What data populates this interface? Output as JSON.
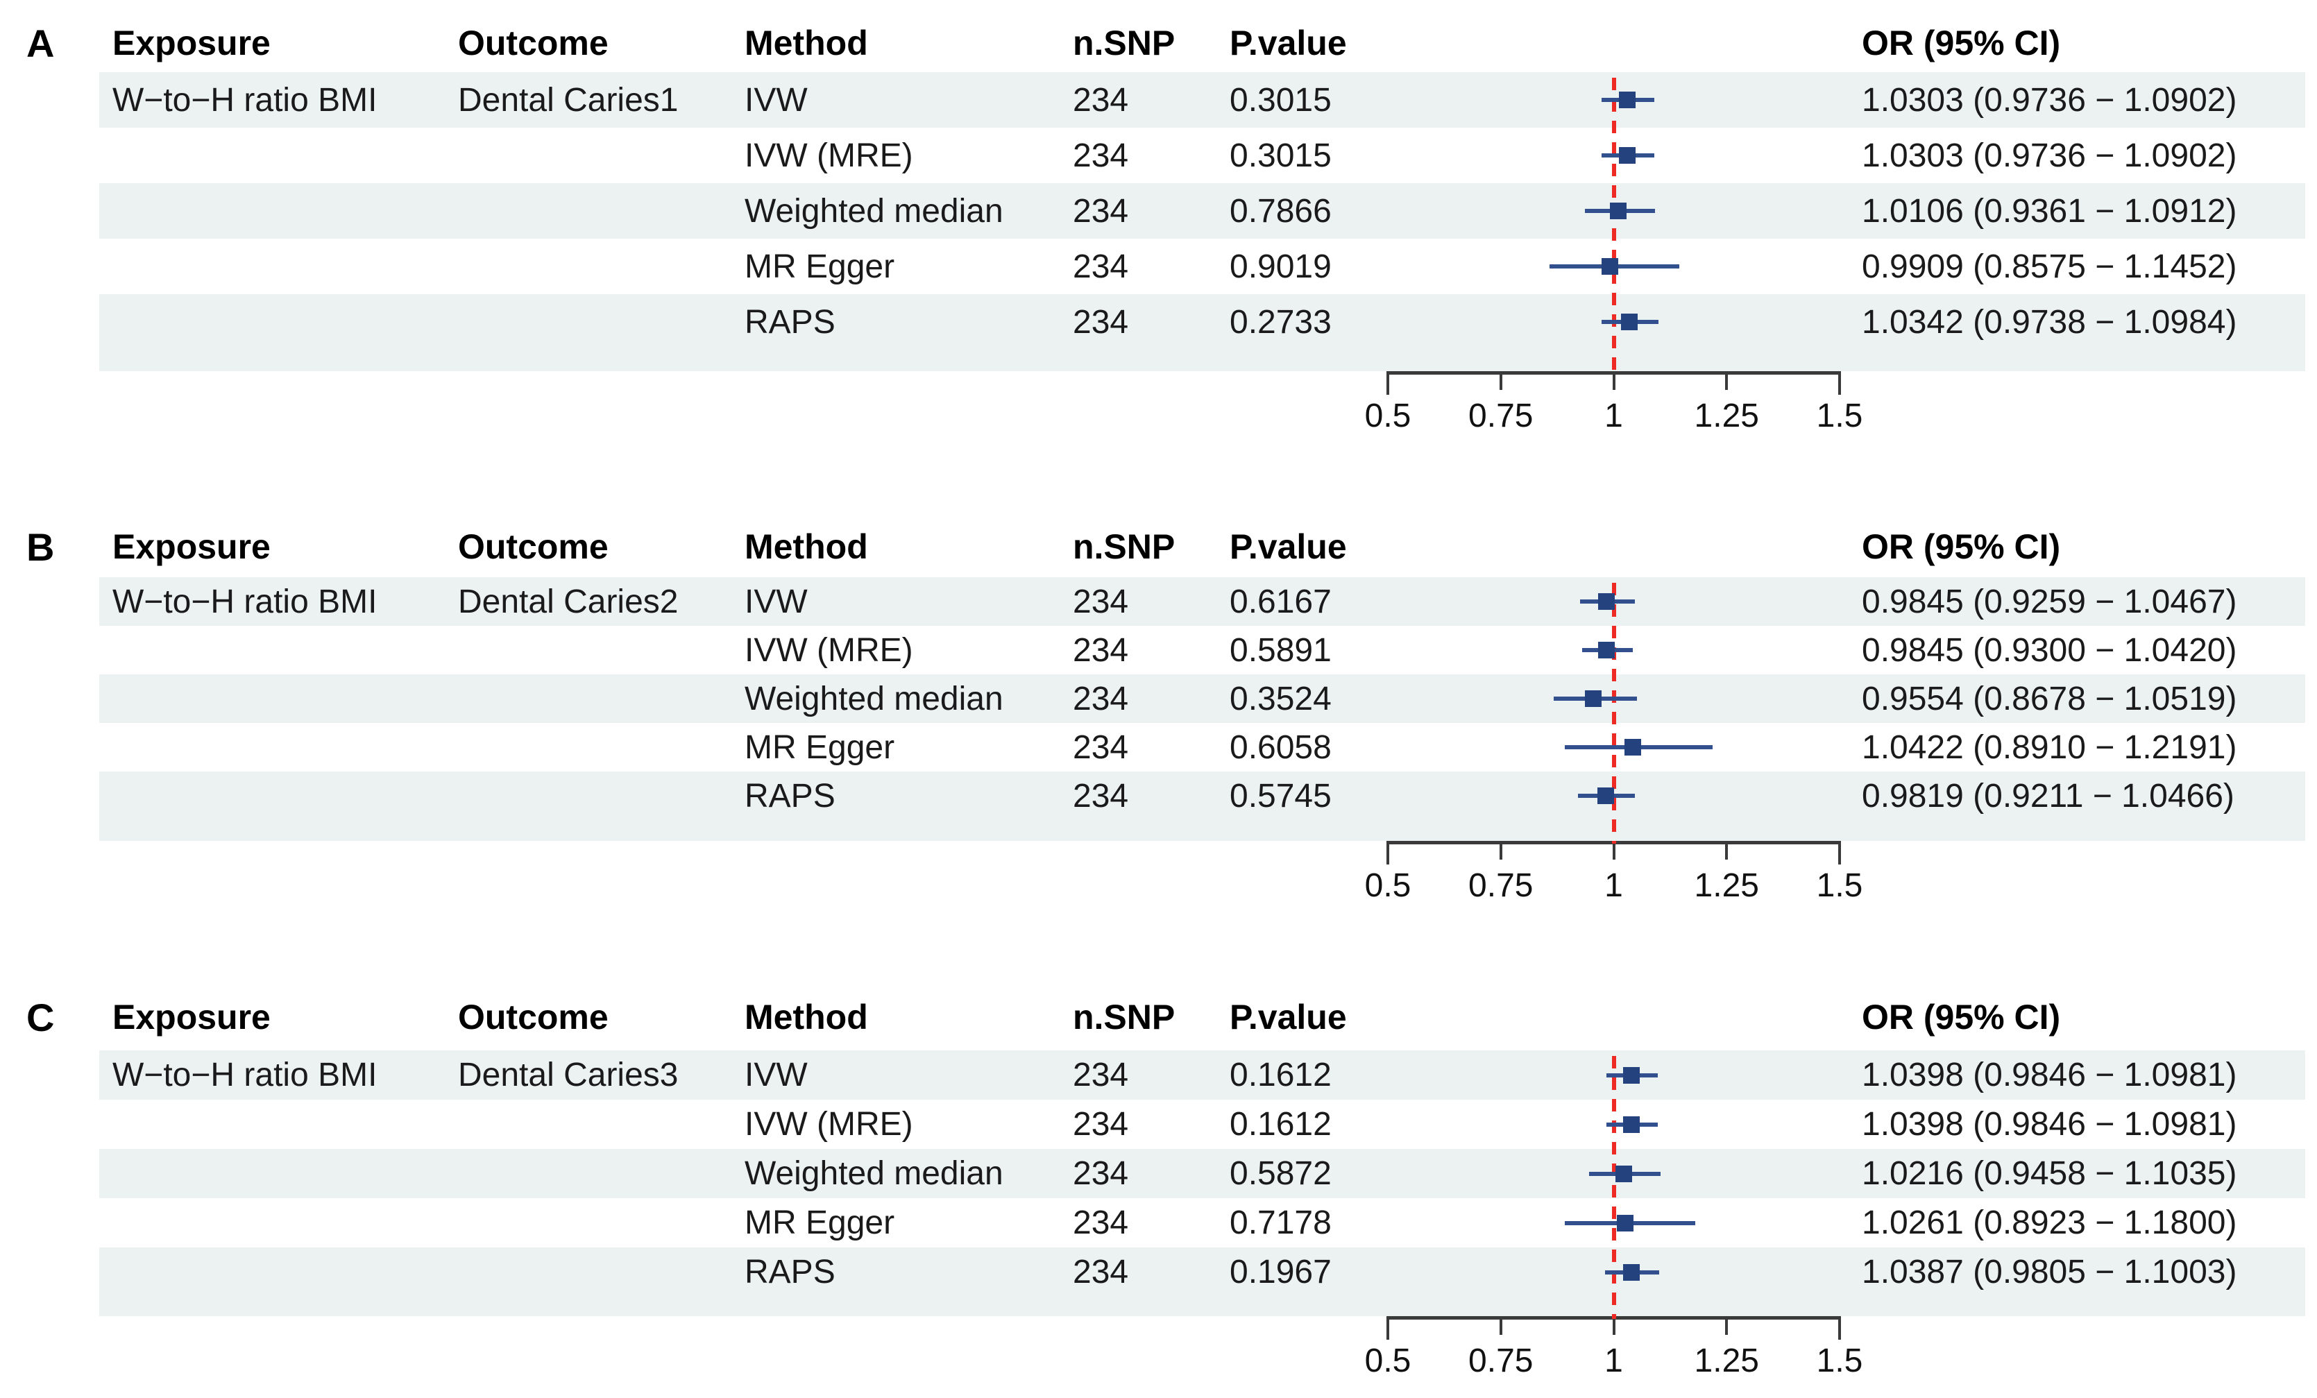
{
  "figure": {
    "type": "forest-plot-figure",
    "description_columns": "Mendelian randomization results table with forest plot"
  },
  "colors": {
    "stripe": "#ecf1f1",
    "marker": "#24427e",
    "ci": "#33508e",
    "ref": "#ee2a24",
    "axis": "#3a3a3a",
    "text": "#1a1a1a"
  },
  "columns": [
    "Exposure",
    "Outcome",
    "Method",
    "n.SNP",
    "P.value",
    "OR (95% CI)"
  ],
  "axis": {
    "ticks": [
      0.5,
      0.75,
      1,
      1.25,
      1.5
    ],
    "tick_labels": [
      "0.5",
      "0.75",
      "1",
      "1.25",
      "1.5"
    ],
    "reference": 1,
    "min": 0.5,
    "max": 1.5
  },
  "panels": [
    {
      "label": "A",
      "exposure": "W−to−H ratio BMI",
      "outcome": "Dental Caries1",
      "rows": [
        {
          "method": "IVW",
          "n_snp": "234",
          "p_value": "0.3015",
          "or_ci": "1.0303 (0.9736 − 1.0902)"
        },
        {
          "method": "IVW (MRE)",
          "n_snp": "234",
          "p_value": "0.3015",
          "or_ci": "1.0303 (0.9736 − 1.0902)"
        },
        {
          "method": "Weighted median",
          "n_snp": "234",
          "p_value": "0.7866",
          "or_ci": "1.0106 (0.9361 − 1.0912)"
        },
        {
          "method": "MR Egger",
          "n_snp": "234",
          "p_value": "0.9019",
          "or_ci": "0.9909 (0.8575 − 1.1452)"
        },
        {
          "method": "RAPS",
          "n_snp": "234",
          "p_value": "0.2733",
          "or_ci": "1.0342 (0.9738 − 1.0984)"
        }
      ]
    },
    {
      "label": "B",
      "exposure": "W−to−H ratio BMI",
      "outcome": "Dental Caries2",
      "rows": [
        {
          "method": "IVW",
          "n_snp": "234",
          "p_value": "0.6167",
          "or_ci": "0.9845 (0.9259 − 1.0467)"
        },
        {
          "method": "IVW (MRE)",
          "n_snp": "234",
          "p_value": "0.5891",
          "or_ci": "0.9845 (0.9300 − 1.0420)"
        },
        {
          "method": "Weighted median",
          "n_snp": "234",
          "p_value": "0.3524",
          "or_ci": "0.9554 (0.8678 − 1.0519)"
        },
        {
          "method": "MR Egger",
          "n_snp": "234",
          "p_value": "0.6058",
          "or_ci": "1.0422 (0.8910 − 1.2191)"
        },
        {
          "method": "RAPS",
          "n_snp": "234",
          "p_value": "0.5745",
          "or_ci": "0.9819 (0.9211 − 1.0466)"
        }
      ]
    },
    {
      "label": "C",
      "exposure": "W−to−H ratio BMI",
      "outcome": "Dental Caries3",
      "rows": [
        {
          "method": "IVW",
          "n_snp": "234",
          "p_value": "0.1612",
          "or_ci": "1.0398 (0.9846 − 1.0981)"
        },
        {
          "method": "IVW (MRE)",
          "n_snp": "234",
          "p_value": "0.1612",
          "or_ci": "1.0398 (0.9846 − 1.0981)"
        },
        {
          "method": "Weighted median",
          "n_snp": "234",
          "p_value": "0.5872",
          "or_ci": "1.0216 (0.9458 − 1.1035)"
        },
        {
          "method": "MR Egger",
          "n_snp": "234",
          "p_value": "0.7178",
          "or_ci": "1.0261 (0.8923 − 1.1800)"
        },
        {
          "method": "RAPS",
          "n_snp": "234",
          "p_value": "0.1967",
          "or_ci": "1.0387 (0.9805 − 1.1003)"
        }
      ]
    }
  ],
  "chart_data": [
    {
      "type": "scatter",
      "subtype": "forest",
      "panel": "A",
      "exposure": "W−to−H ratio BMI",
      "outcome": "Dental Caries1",
      "categories": [
        "IVW",
        "IVW (MRE)",
        "Weighted median",
        "MR Egger",
        "RAPS"
      ],
      "n_snp": [
        234,
        234,
        234,
        234,
        234
      ],
      "p_values": [
        0.3015,
        0.3015,
        0.7866,
        0.9019,
        0.2733
      ],
      "or": [
        1.0303,
        1.0303,
        1.0106,
        0.9909,
        1.0342
      ],
      "ci_low": [
        0.9736,
        0.9736,
        0.9361,
        0.8575,
        0.9738
      ],
      "ci_high": [
        1.0902,
        1.0902,
        1.0912,
        1.1452,
        1.0984
      ],
      "xlim": [
        0.5,
        1.5
      ],
      "x_ticks": [
        0.5,
        0.75,
        1,
        1.25,
        1.5
      ],
      "reference_line": 1,
      "xlabel": "OR (95% CI)"
    },
    {
      "type": "scatter",
      "subtype": "forest",
      "panel": "B",
      "exposure": "W−to−H ratio BMI",
      "outcome": "Dental Caries2",
      "categories": [
        "IVW",
        "IVW (MRE)",
        "Weighted median",
        "MR Egger",
        "RAPS"
      ],
      "n_snp": [
        234,
        234,
        234,
        234,
        234
      ],
      "p_values": [
        0.6167,
        0.5891,
        0.3524,
        0.6058,
        0.5745
      ],
      "or": [
        0.9845,
        0.9845,
        0.9554,
        1.0422,
        0.9819
      ],
      "ci_low": [
        0.9259,
        0.93,
        0.8678,
        0.891,
        0.9211
      ],
      "ci_high": [
        1.0467,
        1.042,
        1.0519,
        1.2191,
        1.0466
      ],
      "xlim": [
        0.5,
        1.5
      ],
      "x_ticks": [
        0.5,
        0.75,
        1,
        1.25,
        1.5
      ],
      "reference_line": 1,
      "xlabel": "OR (95% CI)"
    },
    {
      "type": "scatter",
      "subtype": "forest",
      "panel": "C",
      "exposure": "W−to−H ratio BMI",
      "outcome": "Dental Caries3",
      "categories": [
        "IVW",
        "IVW (MRE)",
        "Weighted median",
        "MR Egger",
        "RAPS"
      ],
      "n_snp": [
        234,
        234,
        234,
        234,
        234
      ],
      "p_values": [
        0.1612,
        0.1612,
        0.5872,
        0.7178,
        0.1967
      ],
      "or": [
        1.0398,
        1.0398,
        1.0216,
        1.0261,
        1.0387
      ],
      "ci_low": [
        0.9846,
        0.9846,
        0.9458,
        0.8923,
        0.9805
      ],
      "ci_high": [
        1.0981,
        1.0981,
        1.1035,
        1.18,
        1.1003
      ],
      "xlim": [
        0.5,
        1.5
      ],
      "x_ticks": [
        0.5,
        0.75,
        1,
        1.25,
        1.5
      ],
      "reference_line": 1,
      "xlabel": "OR (95% CI)"
    }
  ]
}
